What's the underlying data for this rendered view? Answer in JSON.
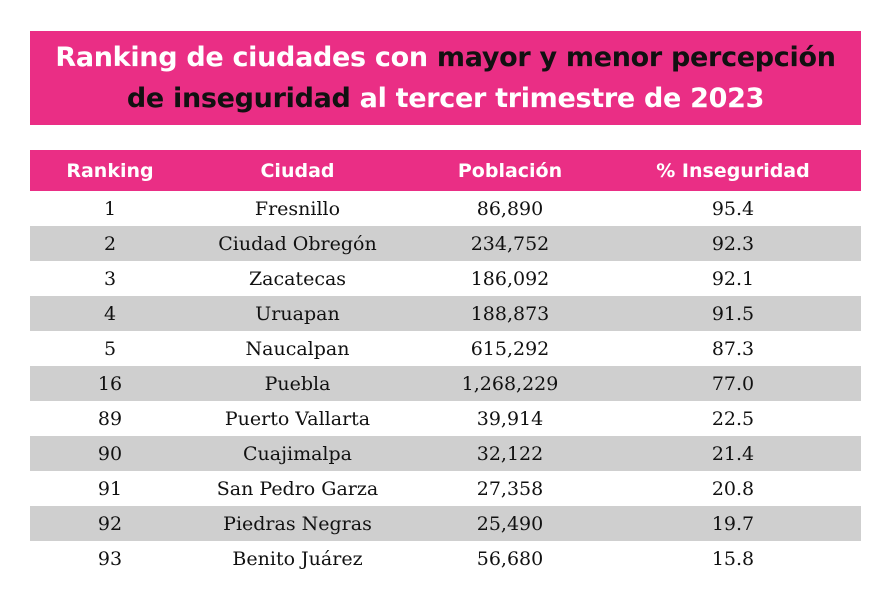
{
  "title": {
    "line1_a": "Ranking de ciudades con ",
    "line1_b": "mayor y menor percepción",
    "line2_a": "de inseguridad",
    "line2_b": " al tercer trimestre de 2023"
  },
  "colors": {
    "accent": "#ea2e85",
    "row_shade": "#cfcfcf",
    "highlight_text": "#111111"
  },
  "chart_data": {
    "type": "table",
    "columns": [
      "Ranking",
      "Ciudad",
      "Población",
      "% Inseguridad"
    ],
    "rows": [
      [
        "1",
        "Fresnillo",
        "86,890",
        "95.4"
      ],
      [
        "2",
        "Ciudad Obregón",
        "234,752",
        "92.3"
      ],
      [
        "3",
        "Zacatecas",
        "186,092",
        "92.1"
      ],
      [
        "4",
        "Uruapan",
        "188,873",
        "91.5"
      ],
      [
        "5",
        "Naucalpan",
        "615,292",
        "87.3"
      ],
      [
        "16",
        "Puebla",
        "1,268,229",
        "77.0"
      ],
      [
        "89",
        "Puerto Vallarta",
        "39,914",
        "22.5"
      ],
      [
        "90",
        "Cuajimalpa",
        "32,122",
        "21.4"
      ],
      [
        "91",
        "San Pedro Garza",
        "27,358",
        "20.8"
      ],
      [
        "92",
        "Piedras Negras",
        "25,490",
        "19.7"
      ],
      [
        "93",
        "Benito Juárez",
        "56,680",
        "15.8"
      ]
    ]
  }
}
